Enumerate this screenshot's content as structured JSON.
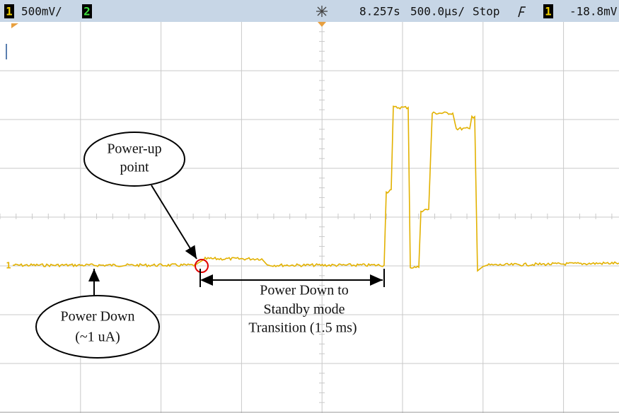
{
  "status_bar": {
    "channel1": "1",
    "ch1_scale": "500mV/",
    "channel2": "2",
    "time": "8.257s",
    "timebase": "500.0µs/",
    "run_state": "Stop",
    "trigger_source": "1",
    "trigger_level": "-18.8mV"
  },
  "trace_marker": "1",
  "annotations": {
    "power_up": [
      "Power-up",
      "point"
    ],
    "power_down": [
      "Power Down",
      "(~1 uA)"
    ],
    "transition": [
      "Power Down to",
      "Standby mode",
      "Transition (1.5 ms)"
    ]
  }
}
